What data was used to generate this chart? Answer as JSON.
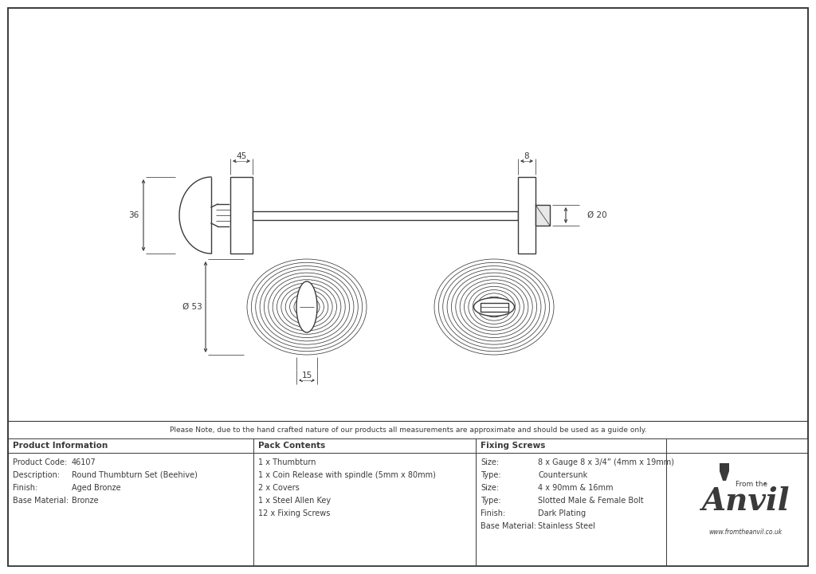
{
  "bg_color": "#ffffff",
  "line_color": "#3a3a3a",
  "border_color": "#3a3a3a",
  "note_text": "Please Note, due to the hand crafted nature of our products all measurements are approximate and should be used as a guide only.",
  "product_info": {
    "header": "Product Information",
    "rows": [
      [
        "Product Code:",
        "46107"
      ],
      [
        "Description:",
        "Round Thumbturn Set (Beehive)"
      ],
      [
        "Finish:",
        "Aged Bronze"
      ],
      [
        "Base Material:",
        "Bronze"
      ]
    ]
  },
  "pack_contents": {
    "header": "Pack Contents",
    "items": [
      "1 x Thumbturn",
      "1 x Coin Release with spindle (5mm x 80mm)",
      "2 x Covers",
      "1 x Steel Allen Key",
      "12 x Fixing Screws"
    ]
  },
  "fixing_screws": {
    "header": "Fixing Screws",
    "rows": [
      [
        "Size:",
        "8 x Gauge 8 x 3/4” (4mm x 19mm)"
      ],
      [
        "Type:",
        "Countersunk"
      ],
      [
        "Size:",
        "4 x 90mm & 16mm"
      ],
      [
        "Type:",
        "Slotted Male & Female Bolt"
      ],
      [
        "Finish:",
        "Dark Plating"
      ],
      [
        "Base Material:",
        "Stainless Steel"
      ]
    ]
  },
  "dim_45": "45",
  "dim_8": "8",
  "dim_36": "36",
  "dim_20": "Ø 20",
  "dim_53": "Ø 53",
  "dim_15": "15"
}
